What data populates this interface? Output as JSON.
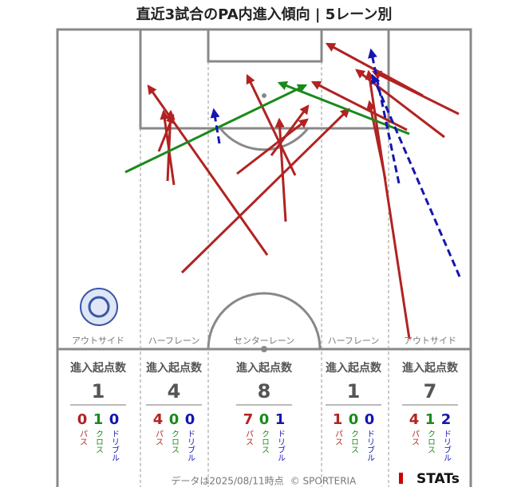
{
  "title": "直近3試合のPA内進入傾向 | 5レーン別",
  "lanes": [
    {
      "label": "アウトサイド",
      "header": "進入起点数",
      "total": 1,
      "breakdown": [
        {
          "count": 0,
          "type": "パス"
        },
        {
          "count": 1,
          "type": "クロス"
        },
        {
          "count": 0,
          "type": "ドリブル"
        }
      ]
    },
    {
      "label": "ハーフレーン",
      "header": "進入起点数",
      "total": 4,
      "breakdown": [
        {
          "count": 4,
          "type": "パス"
        },
        {
          "count": 0,
          "type": "クロス"
        },
        {
          "count": 0,
          "type": "ドリブル"
        }
      ]
    },
    {
      "label": "センターレーン",
      "header": "進入起点数",
      "total": 8,
      "breakdown": [
        {
          "count": 7,
          "type": "パス"
        },
        {
          "count": 0,
          "type": "クロス"
        },
        {
          "count": 1,
          "type": "ドリブル"
        }
      ]
    },
    {
      "label": "ハーフレーン",
      "header": "進入起点数",
      "total": 1,
      "breakdown": [
        {
          "count": 1,
          "type": "パス"
        },
        {
          "count": 0,
          "type": "クロス"
        },
        {
          "count": 0,
          "type": "ドリブル"
        }
      ]
    },
    {
      "label": "アウトサイド",
      "header": "進入起点数",
      "total": 7,
      "breakdown": [
        {
          "count": 4,
          "type": "パス"
        },
        {
          "count": 1,
          "type": "クロス"
        },
        {
          "count": 2,
          "type": "ドリブル"
        }
      ]
    }
  ],
  "footer": {
    "date_note": "データは2025/08/11時点",
    "copyright": "© SPORTERIA",
    "logo": "STATs"
  }
}
